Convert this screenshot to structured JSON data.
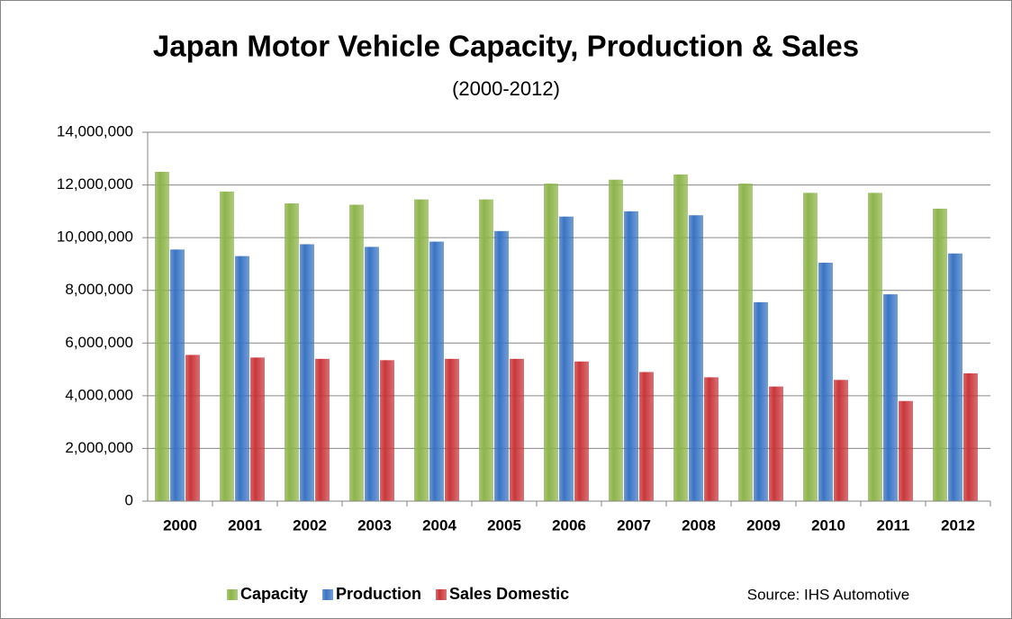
{
  "chart_data": {
    "type": "bar",
    "title": "Japan Motor Vehicle Capacity, Production & Sales",
    "subtitle": "(2000-2012)",
    "annotation": "Source: IHS Automotive",
    "categories": [
      "2000",
      "2001",
      "2002",
      "2003",
      "2004",
      "2005",
      "2006",
      "2007",
      "2008",
      "2009",
      "2010",
      "2011",
      "2012"
    ],
    "series": [
      {
        "name": "Capacity",
        "color": "#8db44a",
        "values": [
          12500000,
          11750000,
          11300000,
          11250000,
          11450000,
          11450000,
          12050000,
          12200000,
          12400000,
          12050000,
          11700000,
          11700000,
          11100000
        ]
      },
      {
        "name": "Production",
        "color": "#3a74c4",
        "values": [
          9550000,
          9300000,
          9750000,
          9650000,
          9850000,
          10250000,
          10800000,
          11000000,
          10850000,
          7550000,
          9050000,
          7850000,
          9400000
        ]
      },
      {
        "name": "Sales Domestic",
        "color": "#c9363a",
        "values": [
          5550000,
          5450000,
          5400000,
          5350000,
          5400000,
          5400000,
          5300000,
          4900000,
          4700000,
          4350000,
          4600000,
          3800000,
          4850000
        ]
      }
    ],
    "ylim": [
      0,
      14000000
    ],
    "yticks": [
      0,
      {
        "value": 2000000,
        "label": "2,000,000"
      },
      {
        "value": 4000000,
        "label": "4,000,000"
      },
      {
        "value": 6000000,
        "label": "6,000,000"
      },
      {
        "value": 8000000,
        "label": "8,000,000"
      },
      {
        "value": 10000000,
        "label": "10,000,000"
      },
      {
        "value": 12000000,
        "label": "12,000,000"
      },
      {
        "value": 14000000,
        "label": "14,000,000"
      }
    ],
    "grid": true,
    "legend": "bottom"
  }
}
